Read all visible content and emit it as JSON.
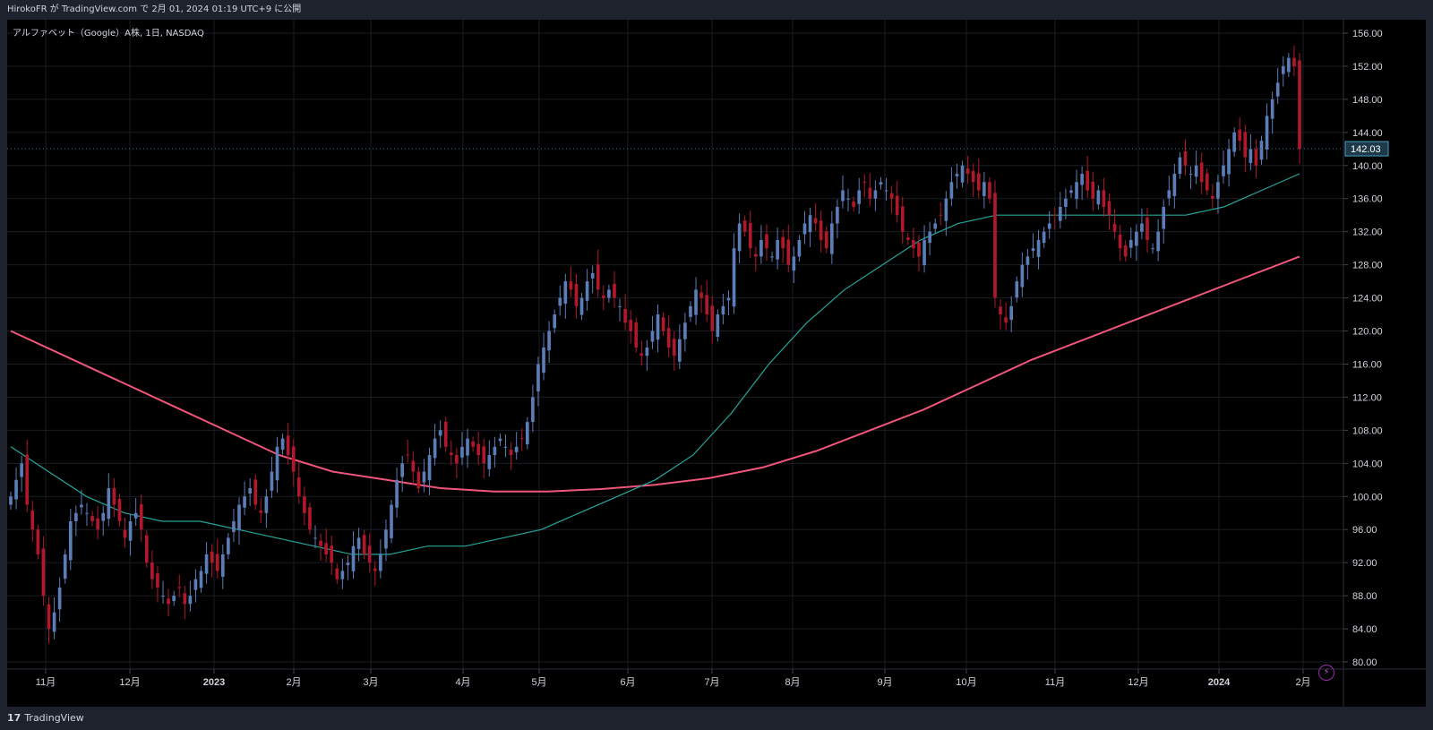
{
  "header": {
    "publish_line": "HirokoFR が TradingView.com で 2月 01, 2024 01:19 UTC+9 に公開"
  },
  "symbol": {
    "label": "アルファベット（Google）A株, 1日, NASDAQ"
  },
  "footer": {
    "brand_name": "TradingView",
    "brand_logo": "17"
  },
  "colors": {
    "up": "#5b7db8",
    "down": "#b2182b",
    "ma_short": "#26a69a",
    "ma_long": "#f0557a",
    "price_tag_bg": "#1e3a4a",
    "grid": "#1a1d24"
  },
  "icons": {
    "alert": "lightning-icon"
  },
  "chart_data": {
    "type": "candlestick",
    "title": "アルファベット（Google）A株, 1日, NASDAQ",
    "ylim": [
      80,
      156
    ],
    "y_ticks": [
      "156.00",
      "152.00",
      "148.00",
      "144.00",
      "140.00",
      "136.00",
      "132.00",
      "128.00",
      "124.00",
      "120.00",
      "116.00",
      "112.00",
      "108.00",
      "104.00",
      "100.00",
      "96.00",
      "92.00",
      "88.00",
      "84.00",
      "80.00"
    ],
    "x_ticks": [
      {
        "label": "11月",
        "bold": false
      },
      {
        "label": "12月",
        "bold": false
      },
      {
        "label": "2023",
        "bold": true
      },
      {
        "label": "2月",
        "bold": false
      },
      {
        "label": "3月",
        "bold": false
      },
      {
        "label": "4月",
        "bold": false
      },
      {
        "label": "5月",
        "bold": false
      },
      {
        "label": "6月",
        "bold": false
      },
      {
        "label": "7月",
        "bold": false
      },
      {
        "label": "8月",
        "bold": false
      },
      {
        "label": "9月",
        "bold": false
      },
      {
        "label": "10月",
        "bold": false
      },
      {
        "label": "11月",
        "bold": false
      },
      {
        "label": "12月",
        "bold": false
      },
      {
        "label": "2024",
        "bold": true
      },
      {
        "label": "2月",
        "bold": false
      }
    ],
    "last_price": "142.03",
    "close_series": [
      100,
      102,
      104,
      99,
      96,
      93,
      88,
      84,
      86,
      89,
      93,
      97,
      98,
      99,
      98,
      97,
      96,
      98,
      101,
      99,
      97,
      95,
      97,
      98,
      96,
      92,
      90,
      89,
      88,
      87,
      88,
      89,
      87,
      88,
      90,
      91,
      93,
      92,
      91,
      93,
      95,
      97,
      99,
      100,
      101,
      99,
      98,
      100,
      103,
      106,
      107,
      105,
      103,
      100,
      98,
      96,
      95,
      94,
      93,
      92,
      90,
      91,
      92,
      94,
      95,
      93,
      92,
      91,
      93,
      96,
      99,
      102,
      104,
      105,
      103,
      101,
      103,
      105,
      107,
      108,
      106,
      105,
      104,
      106,
      107,
      106,
      105,
      104,
      105,
      106,
      107,
      106,
      105,
      106,
      107,
      109,
      112,
      116,
      118,
      120,
      122,
      124,
      126,
      125,
      123,
      124,
      126,
      127,
      125,
      124,
      125,
      124,
      123,
      121,
      120,
      118,
      117,
      118,
      120,
      122,
      120,
      118,
      117,
      119,
      121,
      123,
      125,
      124,
      122,
      120,
      122,
      123,
      124,
      130,
      133,
      132,
      130,
      129,
      131,
      130,
      129,
      131,
      130,
      128,
      129,
      131,
      133,
      134,
      133,
      131,
      130,
      133,
      135,
      137,
      136,
      135,
      137,
      138,
      136,
      137,
      138,
      137,
      136,
      134,
      132,
      131,
      130,
      129,
      131,
      132,
      133,
      134,
      136,
      138,
      139,
      140,
      139,
      138,
      137,
      138,
      136,
      124,
      122,
      121,
      123,
      126,
      128,
      129,
      130,
      131,
      132,
      133,
      134,
      135,
      136,
      137,
      138,
      139,
      137,
      136,
      137,
      135,
      134,
      132,
      130,
      129,
      131,
      132,
      133,
      131,
      130,
      132,
      135,
      137,
      139,
      141,
      140,
      139,
      140,
      138,
      137,
      136,
      138,
      140,
      142,
      144,
      143,
      141,
      142,
      140,
      143,
      146,
      148,
      150,
      152,
      153,
      152,
      142
    ],
    "ma_short_series": [
      106,
      103,
      100,
      98,
      97,
      97,
      96,
      95,
      94,
      93,
      93,
      94,
      94,
      95,
      96,
      98,
      100,
      102,
      105,
      110,
      116,
      121,
      125,
      128,
      131,
      133,
      134,
      134,
      134,
      134,
      134,
      134,
      135,
      137,
      139
    ],
    "ma_long_series": [
      120,
      117,
      114,
      111,
      108,
      105,
      103,
      102,
      101,
      100.6,
      100.6,
      100.9,
      101.4,
      102.2,
      103.5,
      105.5,
      108,
      110.5,
      113.5,
      116.5,
      119,
      121.5,
      124,
      126.5,
      129
    ]
  }
}
